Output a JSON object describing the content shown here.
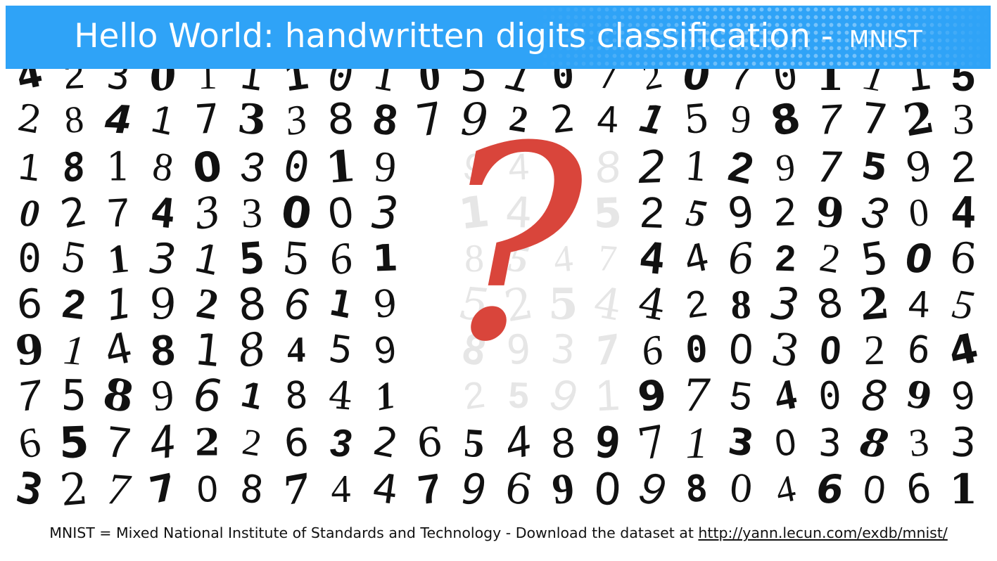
{
  "header": {
    "title": "Hello World: handwritten digits classification - ",
    "subtitle": "MNIST"
  },
  "colors": {
    "header_background": "#2fa3f7",
    "question_mark": "#d9453b",
    "digit_ink": "#111111",
    "faded_digit_ink": "#e6e6e6"
  },
  "digit_grid": {
    "rows": [
      "4230111010510720701115",
      "2841733887922415987723",
      "181803019",
      "027433003",
      "051315561",
      "621928619",
      "914818459",
      "758961841",
      "6574226326548971303833",
      "3277087447969098046061"
    ],
    "rows_right": [
      "21297592",
      "25929304",
      "44622506",
      "42838245",
      "60030264",
      "97540899"
    ],
    "faded_rows": [
      "9418",
      "1475",
      "8547",
      "5254",
      "8937",
      "2591"
    ]
  },
  "question_mark": {
    "glyph": "?",
    "icon": "question-mark-icon"
  },
  "footer": {
    "text": "MNIST = Mixed National Institute of Standards and Technology - Download the dataset at ",
    "link": "http://yann.lecun.com/exdb/mnist/"
  }
}
